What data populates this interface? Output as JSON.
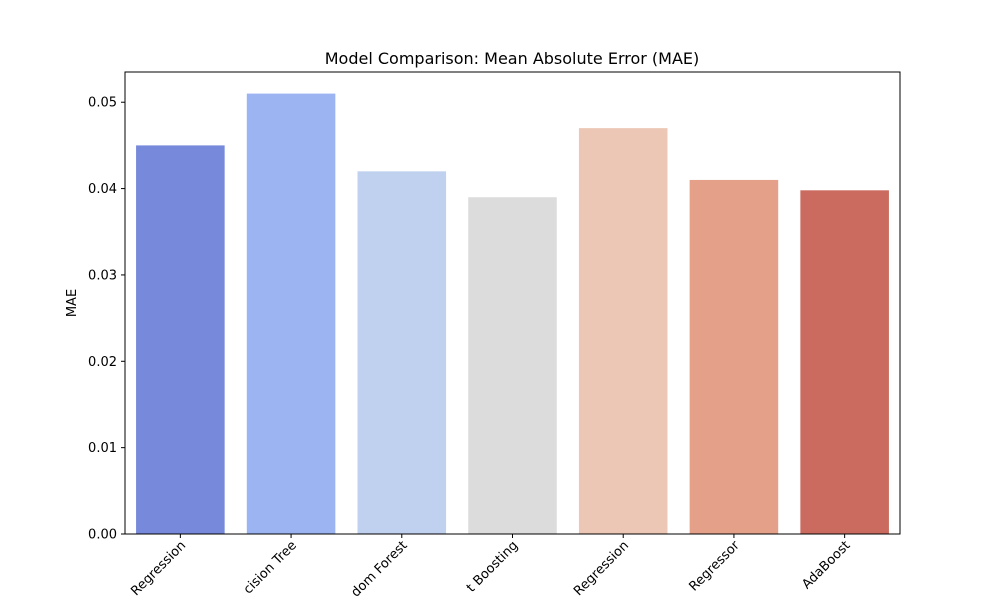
{
  "chart_data": {
    "type": "bar",
    "title": "Model Comparison: Mean Absolute Error (MAE)",
    "xlabel": "",
    "ylabel": "MAE",
    "ylim": [
      0,
      0.0535
    ],
    "yticks": [
      "0.00",
      "0.01",
      "0.02",
      "0.03",
      "0.04",
      "0.05"
    ],
    "categories": [
      "Linear Regression",
      "Decision Tree",
      "Random Forest",
      "Gradient Boosting",
      "Support Vector Regression",
      "KNN Regressor",
      "AdaBoost"
    ],
    "visible_tick_labels": [
      "Regression",
      "cision Tree",
      "dom Forest",
      "t Boosting",
      "Regression",
      "Regressor",
      "AdaBoost"
    ],
    "values": [
      0.045,
      0.051,
      0.042,
      0.039,
      0.047,
      0.041,
      0.0398
    ],
    "colors": [
      "#7689da",
      "#9cb5f2",
      "#c0d1f0",
      "#dcdcdc",
      "#ecc7b5",
      "#e4a089",
      "#cb6b5f"
    ],
    "grid": false,
    "legend": "none"
  }
}
